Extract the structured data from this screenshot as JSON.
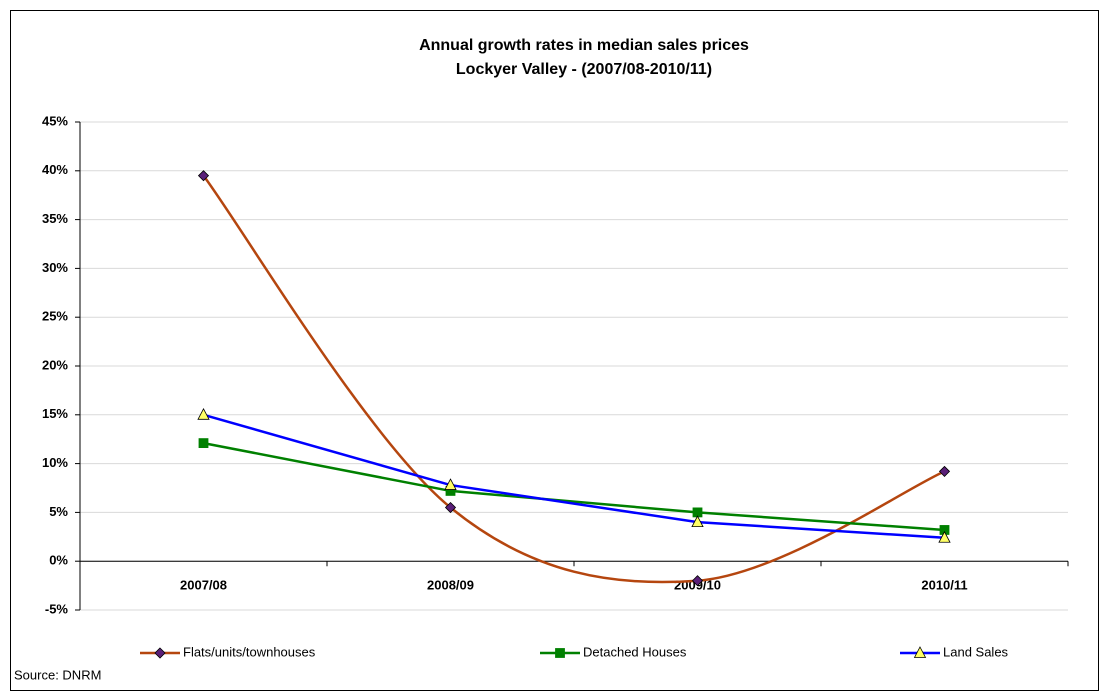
{
  "chart_data": {
    "type": "line",
    "title": "Annual growth rates in median sales prices",
    "subtitle": "Lockyer Valley - (2007/08-2010/11)",
    "categories": [
      "2007/08",
      "2008/09",
      "2009/10",
      "2010/11"
    ],
    "series": [
      {
        "name": "Flats/units/townhouses",
        "color": "#b5460f",
        "marker_color": "#5a1f78",
        "marker": "diamond",
        "smooth": true,
        "values": [
          39.5,
          5.5,
          -2,
          9.2
        ]
      },
      {
        "name": "Detached Houses",
        "color": "#008000",
        "marker_color": "#008000",
        "marker": "square",
        "smooth": false,
        "values": [
          12.1,
          7.2,
          5.0,
          3.2
        ]
      },
      {
        "name": "Land Sales",
        "color": "#0000ff",
        "marker_color": "#ffff66",
        "marker": "triangle",
        "smooth": false,
        "values": [
          15.0,
          7.8,
          4.0,
          2.4
        ]
      }
    ],
    "ylim": [
      -5,
      45
    ],
    "yticks": [
      {
        "value": -5,
        "label": "-5%"
      },
      {
        "value": 0,
        "label": "0%"
      },
      {
        "value": 5,
        "label": "5%"
      },
      {
        "value": 10,
        "label": "10%"
      },
      {
        "value": 15,
        "label": "15%"
      },
      {
        "value": 20,
        "label": "20%"
      },
      {
        "value": 25,
        "label": "25%"
      },
      {
        "value": 30,
        "label": "30%"
      },
      {
        "value": 35,
        "label": "35%"
      },
      {
        "value": 40,
        "label": "40%"
      },
      {
        "value": 45,
        "label": "45%"
      }
    ],
    "grid": true,
    "legend": "bottom",
    "source": "Source: DNRM"
  }
}
